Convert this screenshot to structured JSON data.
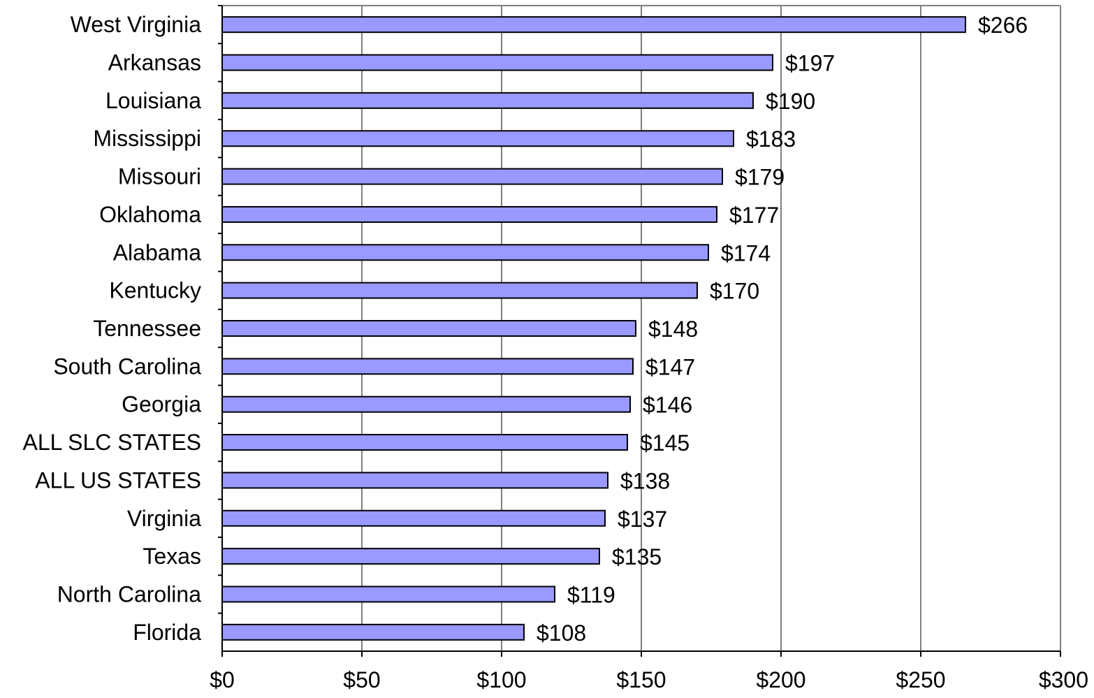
{
  "chart_data": {
    "type": "bar",
    "orientation": "horizontal",
    "categories": [
      "West Virginia",
      "Arkansas",
      "Louisiana",
      "Mississippi",
      "Missouri",
      "Oklahoma",
      "Alabama",
      "Kentucky",
      "Tennessee",
      "South Carolina",
      "Georgia",
      "ALL SLC STATES",
      "ALL US STATES",
      "Virginia",
      "Texas",
      "North Carolina",
      "Florida"
    ],
    "values": [
      266,
      197,
      190,
      183,
      179,
      177,
      174,
      170,
      148,
      147,
      146,
      145,
      138,
      137,
      135,
      119,
      108
    ],
    "value_labels": [
      "$266",
      "$197",
      "$190",
      "$183",
      "$179",
      "$177",
      "$174",
      "$170",
      "$148",
      "$147",
      "$146",
      "$145",
      "$138",
      "$137",
      "$135",
      "$119",
      "$108"
    ],
    "xlim": [
      0,
      300
    ],
    "x_ticks": [
      0,
      50,
      100,
      150,
      200,
      250,
      300
    ],
    "x_tick_labels": [
      "$0",
      "$50",
      "$100",
      "$150",
      "$200",
      "$250",
      "$300"
    ],
    "grid": "vertical",
    "legend": "none",
    "title": "",
    "xlabel": "",
    "ylabel": "",
    "colors": {
      "bar_fill": "#9999ff",
      "bar_stroke": "#000000",
      "grid": "#000000",
      "frame": "#808080"
    }
  }
}
